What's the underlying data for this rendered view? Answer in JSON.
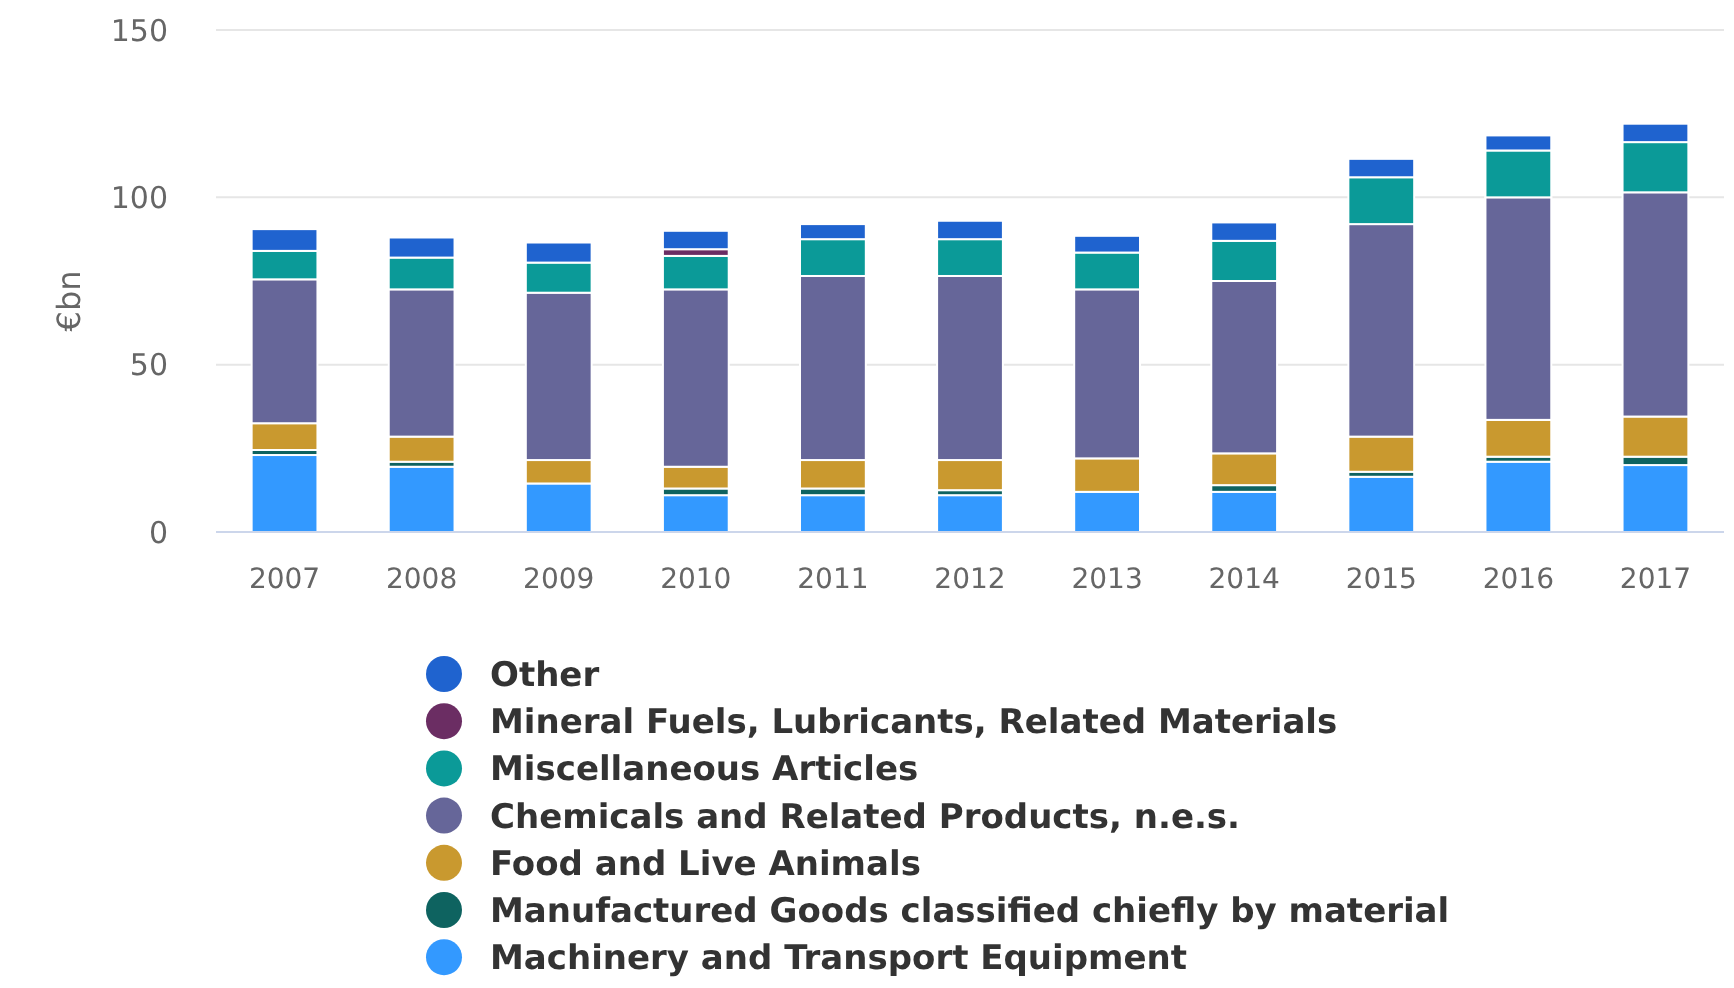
{
  "chart_data": {
    "type": "bar",
    "stacked": true,
    "ylabel": "€bn",
    "categories": [
      "2007",
      "2008",
      "2009",
      "2010",
      "2011",
      "2012",
      "2013",
      "2014",
      "2015",
      "2016",
      "2017"
    ],
    "ylim": [
      0,
      150
    ],
    "yticks": [
      0,
      50,
      100,
      150
    ],
    "grid": "y",
    "legend": "bottom",
    "series": [
      {
        "name": "Machinery and Transport Equipment",
        "color": "#3399ff",
        "values": [
          23,
          19.5,
          14.5,
          11,
          11,
          11,
          12,
          12,
          16.5,
          21,
          20
        ]
      },
      {
        "name": "Manufactured Goods classified chiefly by material",
        "color": "#0e6360",
        "values": [
          1.5,
          1.5,
          null,
          2,
          2,
          1.5,
          0,
          2,
          1.5,
          1.5,
          2.5
        ]
      },
      {
        "name": "Food and Live Animals",
        "color": "#c9992f",
        "values": [
          8,
          7.5,
          7,
          6.5,
          8.5,
          9,
          10,
          9.5,
          10.5,
          11,
          12
        ]
      },
      {
        "name": "Chemicals and Related Products, n.e.s.",
        "color": "#666699",
        "values": [
          43,
          44,
          50,
          53,
          55,
          55,
          50.5,
          51.5,
          63.5,
          66.5,
          67
        ]
      },
      {
        "name": "Miscellaneous Articles",
        "color": "#0b9a98",
        "values": [
          8.5,
          9.5,
          9,
          10,
          11,
          11,
          11,
          12,
          14,
          14,
          15
        ]
      },
      {
        "name": "Mineral Fuels, Lubricants, Related Materials",
        "color": "#6b2d63",
        "values": [
          0,
          0,
          0,
          2,
          0,
          0,
          0,
          0,
          0,
          0,
          0
        ]
      },
      {
        "name": "Other",
        "color": "#1f63cf",
        "values": [
          6.5,
          6,
          6,
          5.5,
          4.5,
          5.5,
          5,
          5.5,
          5.5,
          4.5,
          5.5
        ]
      }
    ]
  }
}
